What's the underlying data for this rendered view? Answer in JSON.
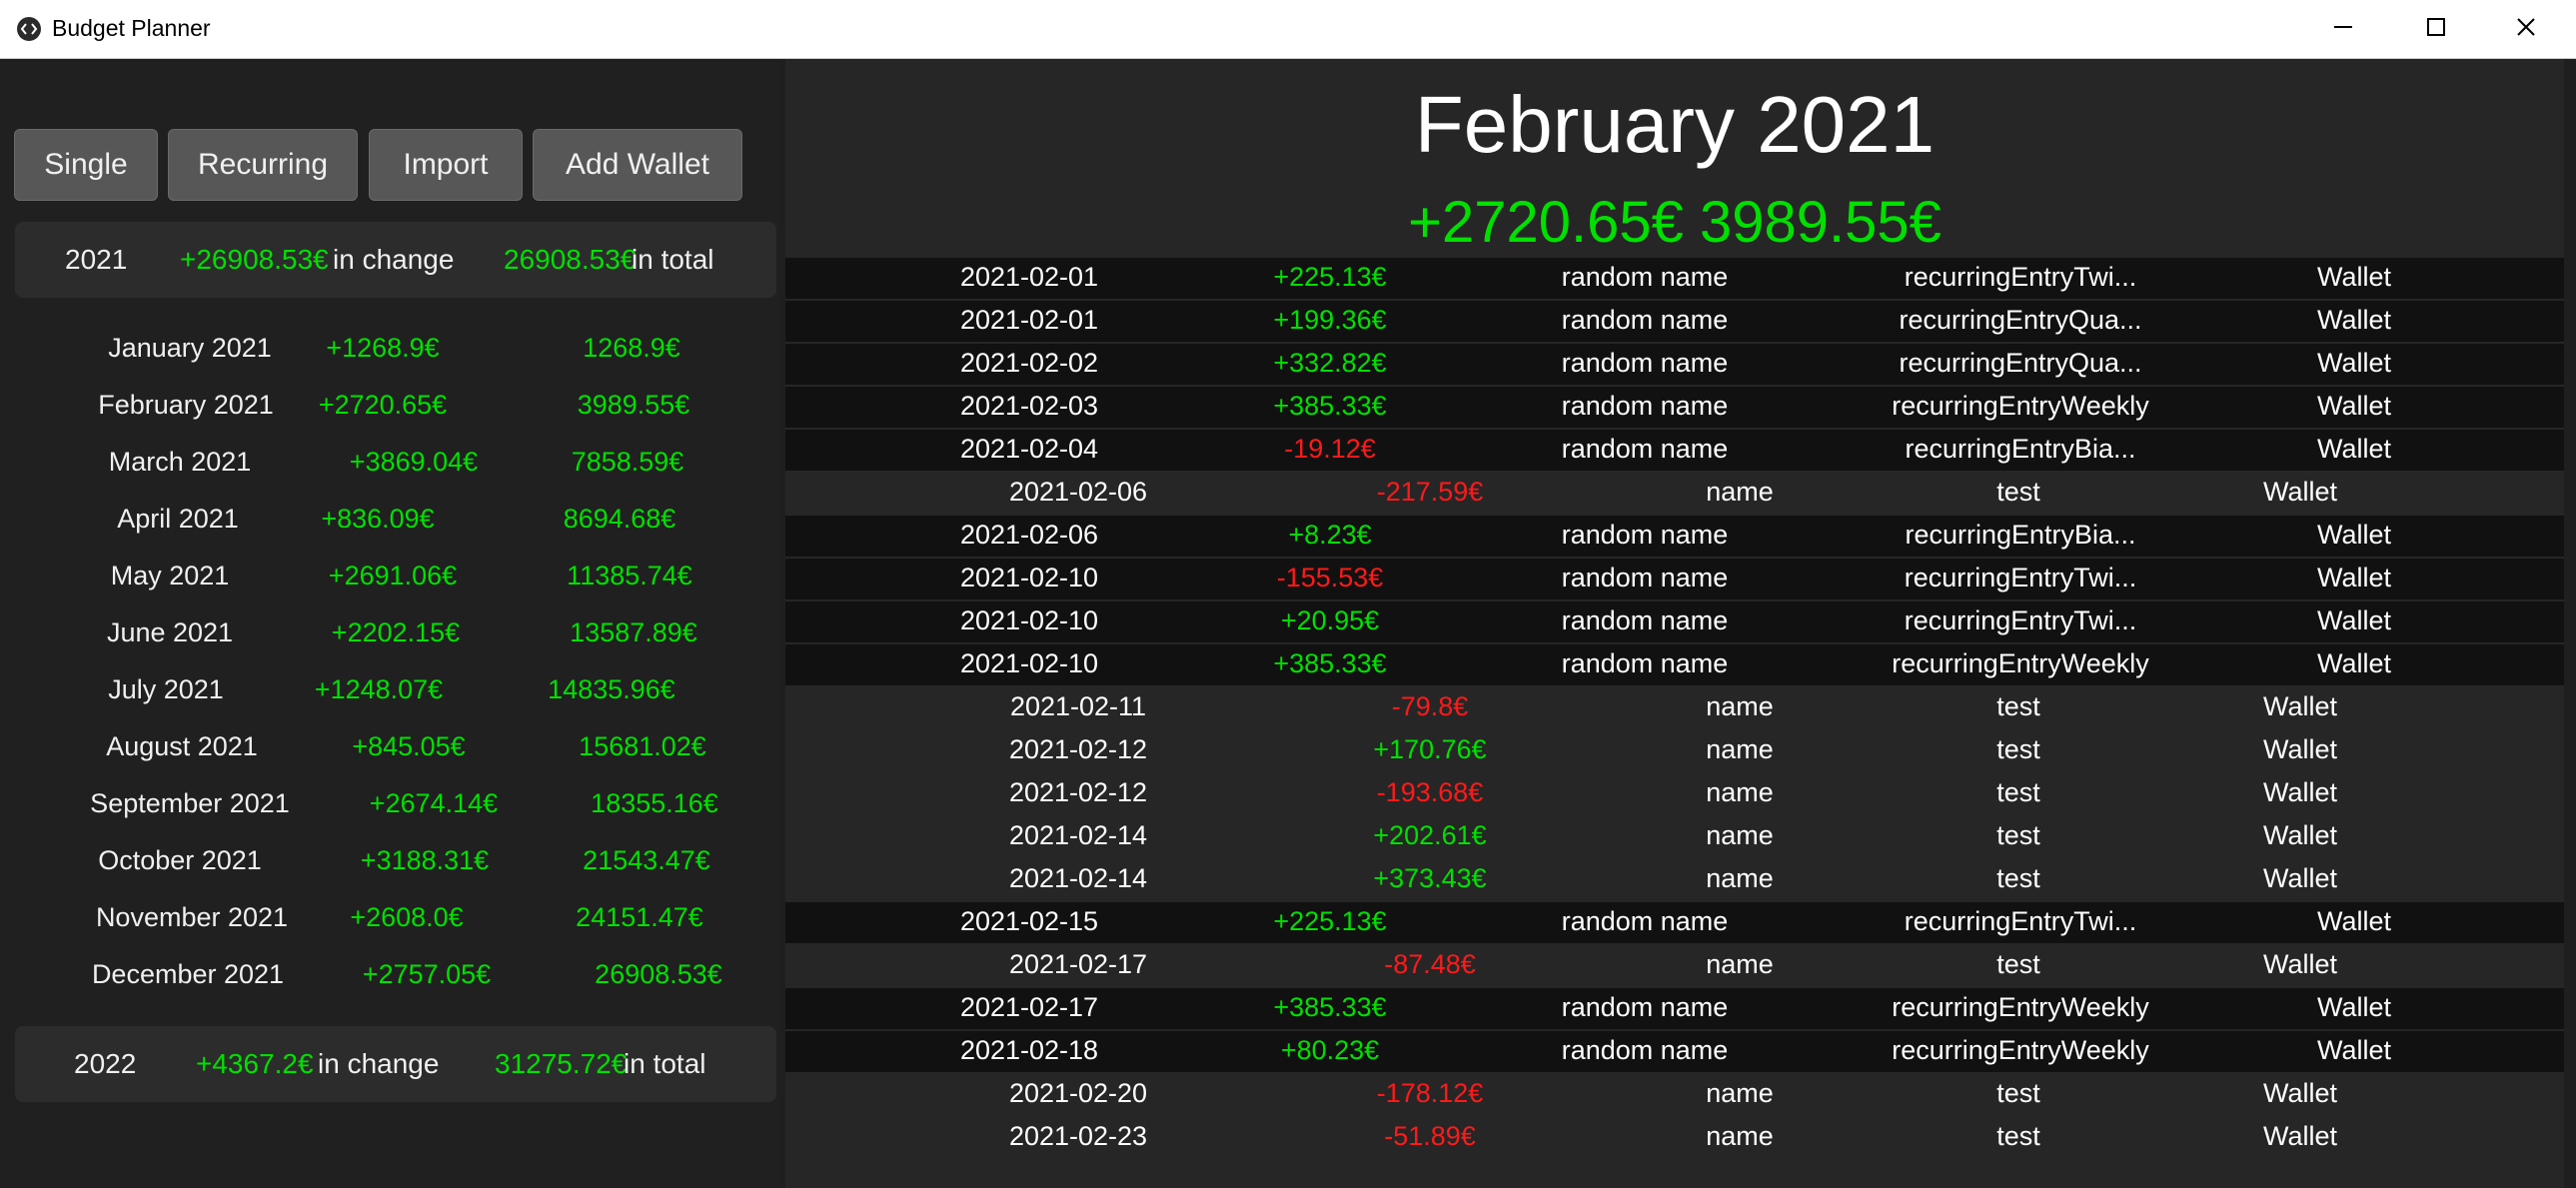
{
  "window": {
    "title": "Budget Planner"
  },
  "toolbar": {
    "single_label": "Single",
    "recurring_label": "Recurring",
    "import_label": "Import",
    "add_wallet_label": "Add Wallet"
  },
  "years": [
    {
      "year": "2021",
      "change": "+26908.53€",
      "change_suffix": "in change",
      "total": "26908.53€",
      "total_suffix": "in total"
    },
    {
      "year": "2022",
      "change": "+4367.2€",
      "change_suffix": "in change",
      "total": "31275.72€",
      "total_suffix": "in total"
    }
  ],
  "months": [
    {
      "name": "January 2021",
      "change": "+1268.9€",
      "total": "1268.9€"
    },
    {
      "name": "February 2021",
      "change": "+2720.65€",
      "total": "3989.55€"
    },
    {
      "name": "March 2021",
      "change": "+3869.04€",
      "total": "7858.59€"
    },
    {
      "name": "April 2021",
      "change": "+836.09€",
      "total": "8694.68€"
    },
    {
      "name": "May 2021",
      "change": "+2691.06€",
      "total": "11385.74€"
    },
    {
      "name": "June 2021",
      "change": "+2202.15€",
      "total": "13587.89€"
    },
    {
      "name": "July 2021",
      "change": "+1248.07€",
      "total": "14835.96€"
    },
    {
      "name": "August 2021",
      "change": "+845.05€",
      "total": "15681.02€"
    },
    {
      "name": "September 2021",
      "change": "+2674.14€",
      "total": "18355.16€"
    },
    {
      "name": "October 2021",
      "change": "+3188.31€",
      "total": "21543.47€"
    },
    {
      "name": "November 2021",
      "change": "+2608.0€",
      "total": "24151.47€"
    },
    {
      "name": "December 2021",
      "change": "+2757.05€",
      "total": "26908.53€"
    }
  ],
  "selected_month": {
    "title": "February 2021",
    "change": "+2720.65€",
    "total": "3989.55€"
  },
  "entries": [
    {
      "date": "2021-02-01",
      "amount": "+225.13€",
      "name": "random name",
      "category": "recurringEntryTwi...",
      "wallet": "Wallet",
      "type": "recurring",
      "sign": "pos"
    },
    {
      "date": "2021-02-01",
      "amount": "+199.36€",
      "name": "random name",
      "category": "recurringEntryQua...",
      "wallet": "Wallet",
      "type": "recurring",
      "sign": "pos"
    },
    {
      "date": "2021-02-02",
      "amount": "+332.82€",
      "name": "random name",
      "category": "recurringEntryQua...",
      "wallet": "Wallet",
      "type": "recurring",
      "sign": "pos"
    },
    {
      "date": "2021-02-03",
      "amount": "+385.33€",
      "name": "random name",
      "category": "recurringEntryWeekly",
      "wallet": "Wallet",
      "type": "recurring",
      "sign": "pos"
    },
    {
      "date": "2021-02-04",
      "amount": "-19.12€",
      "name": "random name",
      "category": "recurringEntryBia...",
      "wallet": "Wallet",
      "type": "recurring",
      "sign": "neg"
    },
    {
      "date": "2021-02-06",
      "amount": "-217.59€",
      "name": "name",
      "category": "test",
      "wallet": "Wallet",
      "type": "single",
      "sign": "neg"
    },
    {
      "date": "2021-02-06",
      "amount": "+8.23€",
      "name": "random name",
      "category": "recurringEntryBia...",
      "wallet": "Wallet",
      "type": "recurring",
      "sign": "pos"
    },
    {
      "date": "2021-02-10",
      "amount": "-155.53€",
      "name": "random name",
      "category": "recurringEntryTwi...",
      "wallet": "Wallet",
      "type": "recurring",
      "sign": "neg"
    },
    {
      "date": "2021-02-10",
      "amount": "+20.95€",
      "name": "random name",
      "category": "recurringEntryTwi...",
      "wallet": "Wallet",
      "type": "recurring",
      "sign": "pos"
    },
    {
      "date": "2021-02-10",
      "amount": "+385.33€",
      "name": "random name",
      "category": "recurringEntryWeekly",
      "wallet": "Wallet",
      "type": "recurring",
      "sign": "pos"
    },
    {
      "date": "2021-02-11",
      "amount": "-79.8€",
      "name": "name",
      "category": "test",
      "wallet": "Wallet",
      "type": "single",
      "sign": "neg"
    },
    {
      "date": "2021-02-12",
      "amount": "+170.76€",
      "name": "name",
      "category": "test",
      "wallet": "Wallet",
      "type": "single",
      "sign": "pos"
    },
    {
      "date": "2021-02-12",
      "amount": "-193.68€",
      "name": "name",
      "category": "test",
      "wallet": "Wallet",
      "type": "single",
      "sign": "neg"
    },
    {
      "date": "2021-02-14",
      "amount": "+202.61€",
      "name": "name",
      "category": "test",
      "wallet": "Wallet",
      "type": "single",
      "sign": "pos"
    },
    {
      "date": "2021-02-14",
      "amount": "+373.43€",
      "name": "name",
      "category": "test",
      "wallet": "Wallet",
      "type": "single",
      "sign": "pos"
    },
    {
      "date": "2021-02-15",
      "amount": "+225.13€",
      "name": "random name",
      "category": "recurringEntryTwi...",
      "wallet": "Wallet",
      "type": "recurring",
      "sign": "pos"
    },
    {
      "date": "2021-02-17",
      "amount": "-87.48€",
      "name": "name",
      "category": "test",
      "wallet": "Wallet",
      "type": "single",
      "sign": "neg"
    },
    {
      "date": "2021-02-17",
      "amount": "+385.33€",
      "name": "random name",
      "category": "recurringEntryWeekly",
      "wallet": "Wallet",
      "type": "recurring",
      "sign": "pos"
    },
    {
      "date": "2021-02-18",
      "amount": "+80.23€",
      "name": "random name",
      "category": "recurringEntryWeekly",
      "wallet": "Wallet",
      "type": "recurring",
      "sign": "pos"
    },
    {
      "date": "2021-02-20",
      "amount": "-178.12€",
      "name": "name",
      "category": "test",
      "wallet": "Wallet",
      "type": "single",
      "sign": "neg"
    },
    {
      "date": "2021-02-23",
      "amount": "-51.89€",
      "name": "name",
      "category": "test",
      "wallet": "Wallet",
      "type": "single",
      "sign": "neg"
    }
  ],
  "colors": {
    "positive": "#00e000",
    "negative": "#ff1a1a"
  },
  "icons": {
    "app": "app-code-icon",
    "minimize": "minimize-icon",
    "maximize": "maximize-icon",
    "close": "close-icon"
  }
}
